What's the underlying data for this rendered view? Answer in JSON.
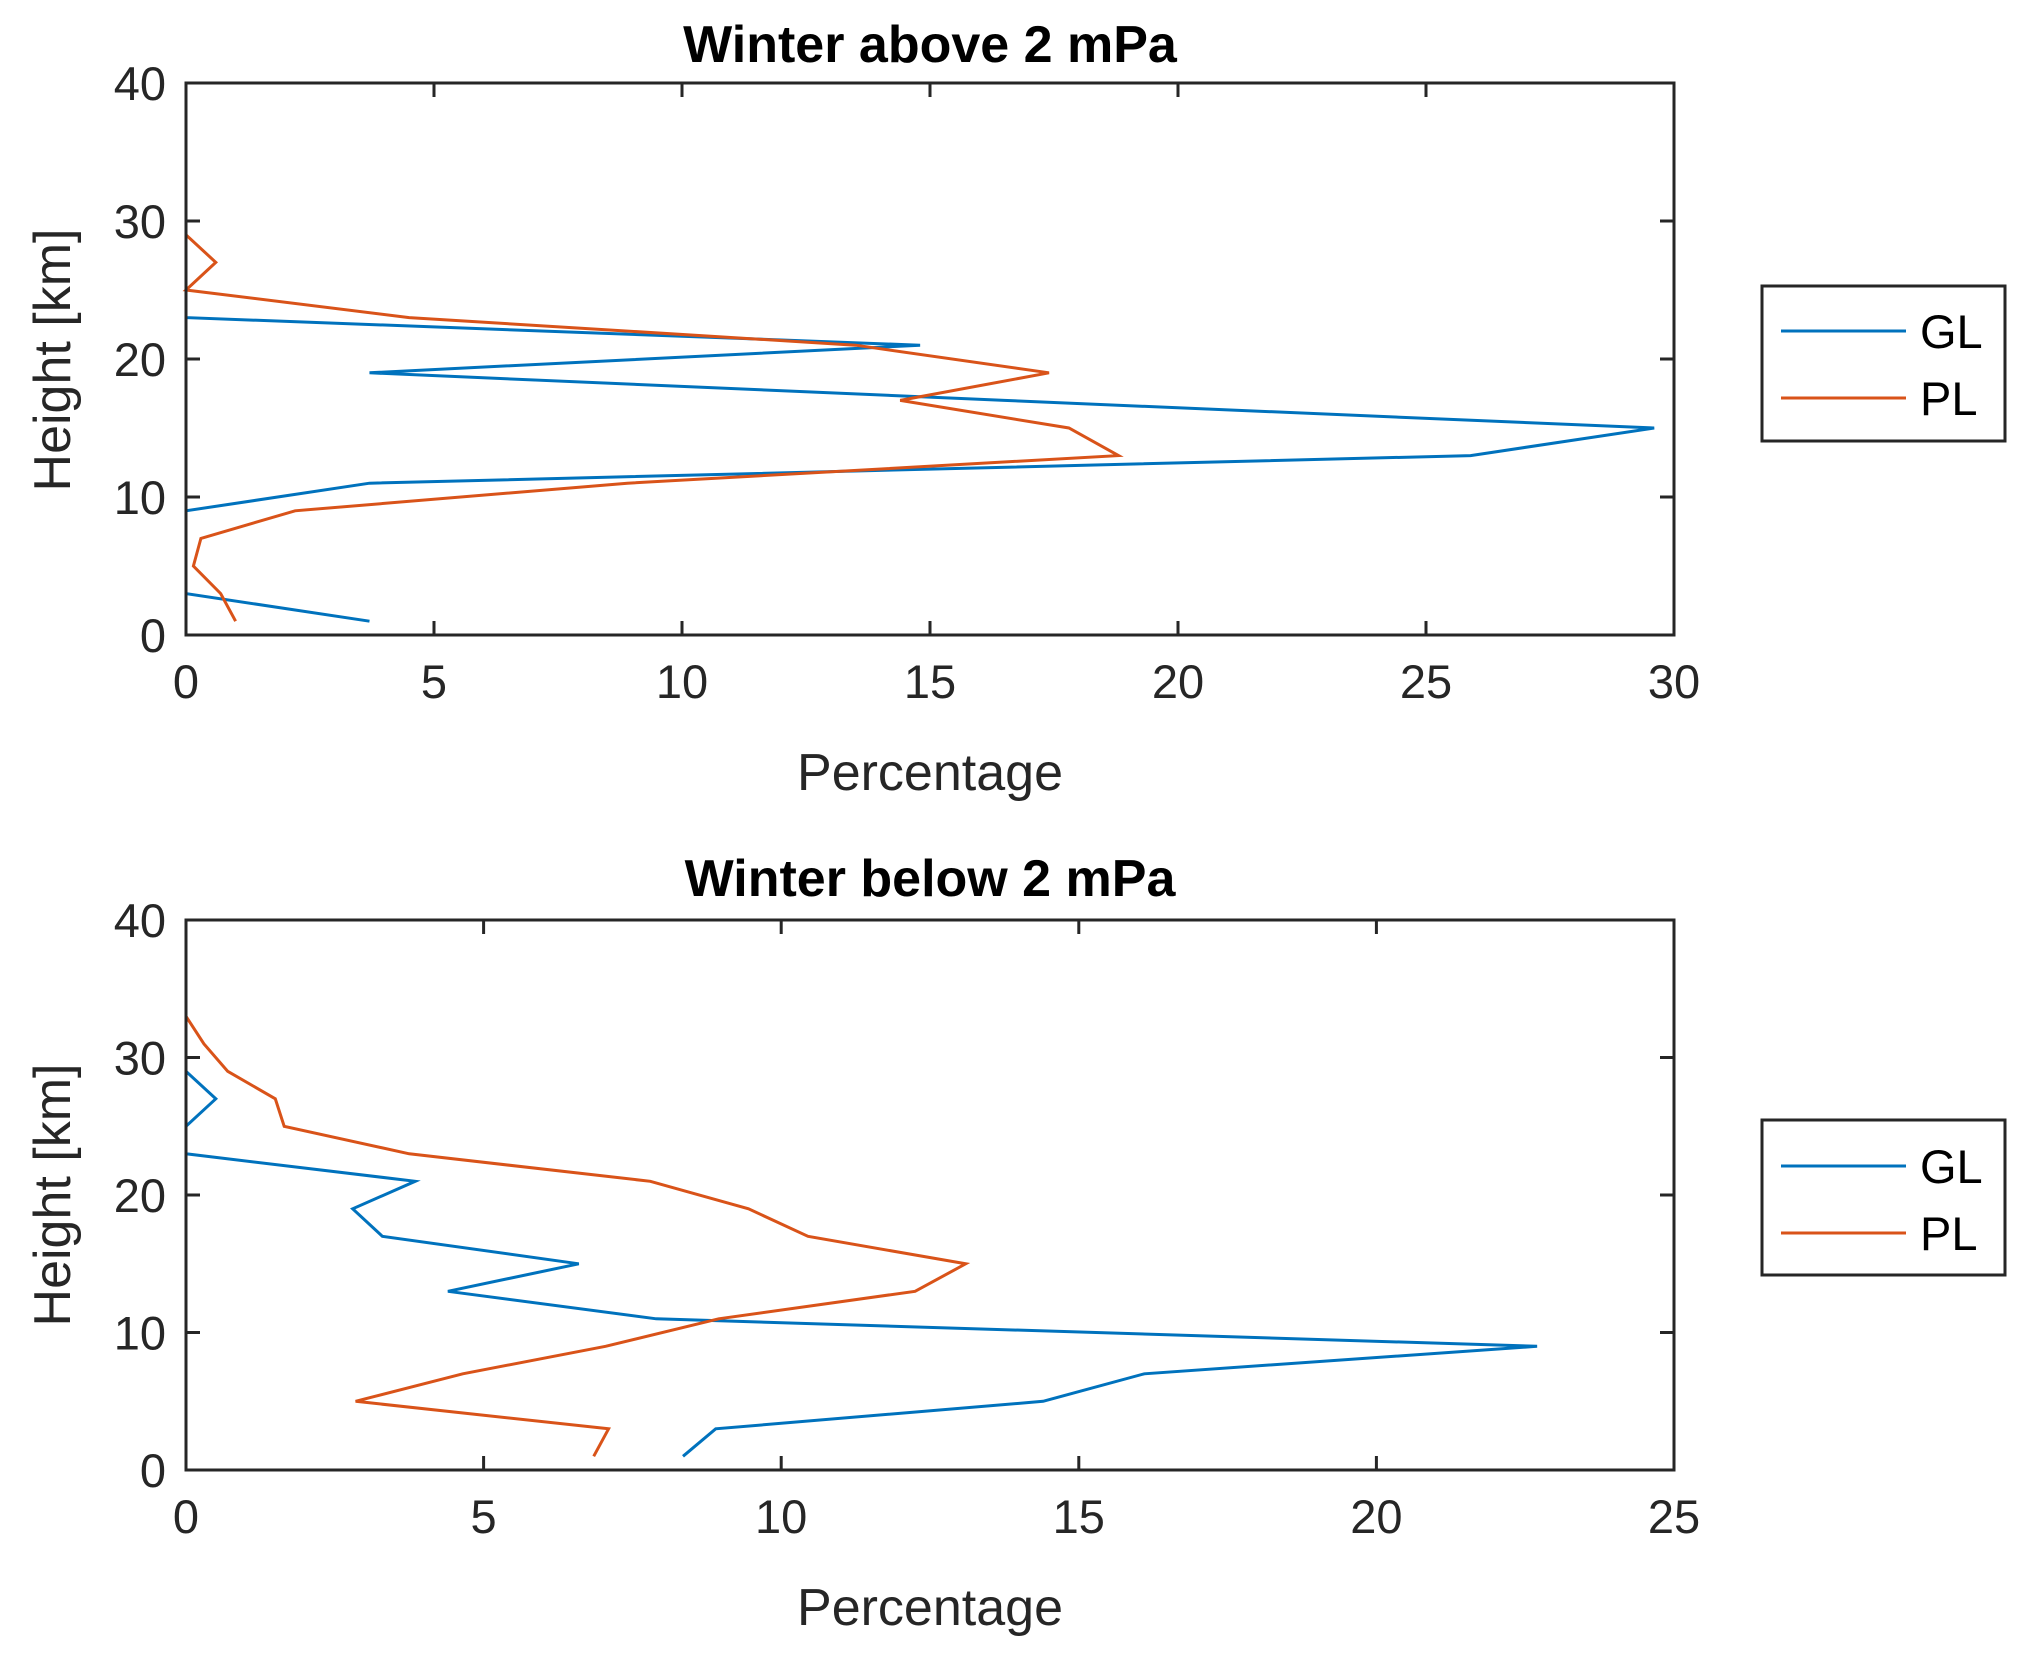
{
  "chart_data": [
    {
      "type": "line",
      "title": "Winter above 2 mPa",
      "xlabel": "Percentage",
      "ylabel": "Height [km]",
      "xlim": [
        0,
        30
      ],
      "ylim": [
        0,
        40
      ],
      "xticks": [
        0,
        5,
        10,
        15,
        20,
        25,
        30
      ],
      "yticks": [
        0,
        10,
        20,
        30,
        40
      ],
      "grid": false,
      "legend_position": "outside-right",
      "series": [
        {
          "name": "GL",
          "color": "#0072BD",
          "points": [
            [
              3.7,
              1
            ],
            [
              0,
              3
            ],
            [
              0,
              5
            ],
            [
              0,
              7
            ],
            [
              0,
              9
            ],
            [
              3.7,
              11
            ],
            [
              25.9,
              13
            ],
            [
              29.6,
              15
            ],
            [
              16.5,
              17
            ],
            [
              3.7,
              19
            ],
            [
              14.8,
              21
            ],
            [
              0,
              23
            ],
            [
              0,
              25
            ],
            [
              0,
              27
            ],
            [
              0,
              29
            ]
          ]
        },
        {
          "name": "PL",
          "color": "#D95319",
          "points": [
            [
              1.0,
              1
            ],
            [
              0.7,
              3
            ],
            [
              0.15,
              5
            ],
            [
              0.3,
              7
            ],
            [
              2.2,
              9
            ],
            [
              8.9,
              11
            ],
            [
              18.8,
              13
            ],
            [
              17.8,
              15
            ],
            [
              14.4,
              17
            ],
            [
              17.4,
              19
            ],
            [
              13.5,
              21
            ],
            [
              4.5,
              23
            ],
            [
              0,
              25
            ],
            [
              0.6,
              27
            ],
            [
              0,
              29
            ],
            [
              0,
              31
            ],
            [
              0,
              33
            ],
            [
              0,
              35
            ]
          ]
        }
      ]
    },
    {
      "type": "line",
      "title": "Winter below 2 mPa",
      "xlabel": "Percentage",
      "ylabel": "Height [km]",
      "xlim": [
        0,
        25
      ],
      "ylim": [
        0,
        40
      ],
      "xticks": [
        0,
        5,
        10,
        15,
        20,
        25
      ],
      "yticks": [
        0,
        10,
        20,
        30,
        40
      ],
      "grid": false,
      "legend_position": "outside-right",
      "series": [
        {
          "name": "GL",
          "color": "#0072BD",
          "points": [
            [
              8.35,
              1
            ],
            [
              8.9,
              3
            ],
            [
              14.4,
              5
            ],
            [
              16.1,
              7
            ],
            [
              22.7,
              9
            ],
            [
              7.9,
              11
            ],
            [
              4.4,
              13
            ],
            [
              6.6,
              15
            ],
            [
              3.3,
              17
            ],
            [
              2.8,
              19
            ],
            [
              3.85,
              21
            ],
            [
              0,
              23
            ],
            [
              0,
              25
            ],
            [
              0.5,
              27
            ],
            [
              0,
              29
            ],
            [
              0,
              31
            ],
            [
              0,
              33
            ]
          ]
        },
        {
          "name": "PL",
          "color": "#D95319",
          "points": [
            [
              6.85,
              1
            ],
            [
              7.1,
              3
            ],
            [
              2.85,
              5
            ],
            [
              4.65,
              7
            ],
            [
              7.05,
              9
            ],
            [
              8.95,
              11
            ],
            [
              12.25,
              13
            ],
            [
              13.1,
              15
            ],
            [
              10.45,
              17
            ],
            [
              9.45,
              19
            ],
            [
              7.8,
              21
            ],
            [
              3.75,
              23
            ],
            [
              1.65,
              25
            ],
            [
              1.5,
              27
            ],
            [
              0.7,
              29
            ],
            [
              0.3,
              31
            ],
            [
              0,
              33
            ],
            [
              0,
              35
            ]
          ]
        }
      ]
    }
  ]
}
